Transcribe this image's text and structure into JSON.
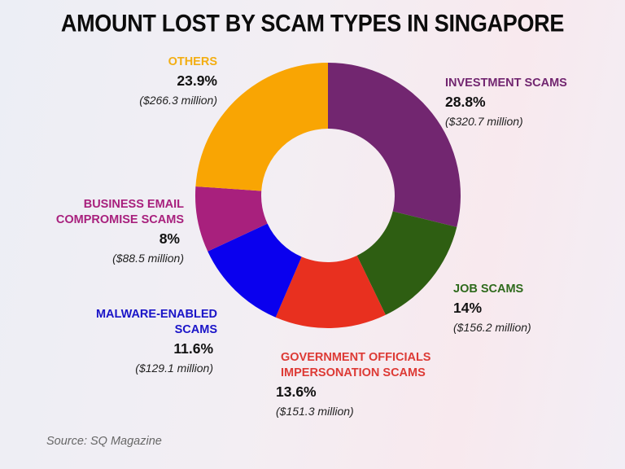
{
  "title": "AMOUNT LOST BY SCAM TYPES IN SINGAPORE",
  "source": "Source: SQ Magazine",
  "colors": {
    "investment": "#722670",
    "job": "#2e5e12",
    "government": "#e8301f",
    "malware": "#0a00ee",
    "bec": "#a8207d",
    "others": "#f9a503"
  },
  "labels": {
    "investment": {
      "name": "INVESTMENT SCAMS",
      "pct": "28.8%",
      "amount": "($320.7 million)"
    },
    "job": {
      "name": "JOB SCAMS",
      "pct": "14%",
      "amount": "($156.2 million)"
    },
    "government": {
      "name_line1": "GOVERNMENT OFFICIALS",
      "name_line2": "IMPERSONATION SCAMS",
      "pct": "13.6%",
      "amount": "($151.3 million)"
    },
    "malware": {
      "name_line1": "MALWARE-ENABLED",
      "name_line2": "SCAMS",
      "pct": "11.6%",
      "amount": "($129.1 million)"
    },
    "bec": {
      "name_line1": "BUSINESS EMAIL",
      "name_line2": "COMPROMISE SCAMS",
      "pct": "8%",
      "amount": "($88.5 million)"
    },
    "others": {
      "name": "OTHERS",
      "pct": "23.9%",
      "amount": "($266.3 million)"
    }
  },
  "chart_data": {
    "type": "pie",
    "subtype": "donut",
    "title": "AMOUNT LOST BY SCAM TYPES IN SINGAPORE",
    "categories": [
      "Investment Scams",
      "Job Scams",
      "Government Officials Impersonation Scams",
      "Malware-Enabled Scams",
      "Business Email Compromise Scams",
      "Others"
    ],
    "values": [
      28.8,
      14,
      13.6,
      11.6,
      8,
      23.9
    ],
    "amounts_million_usd": [
      320.7,
      156.2,
      151.3,
      129.1,
      88.5,
      266.3
    ],
    "unit": "%",
    "colors": [
      "#722670",
      "#2e5e12",
      "#e8301f",
      "#0a00ee",
      "#a8207d",
      "#f9a503"
    ],
    "start_angle": "12 o'clock",
    "direction": "clockwise",
    "legend": "direct labels",
    "source": "Source: SQ Magazine"
  }
}
